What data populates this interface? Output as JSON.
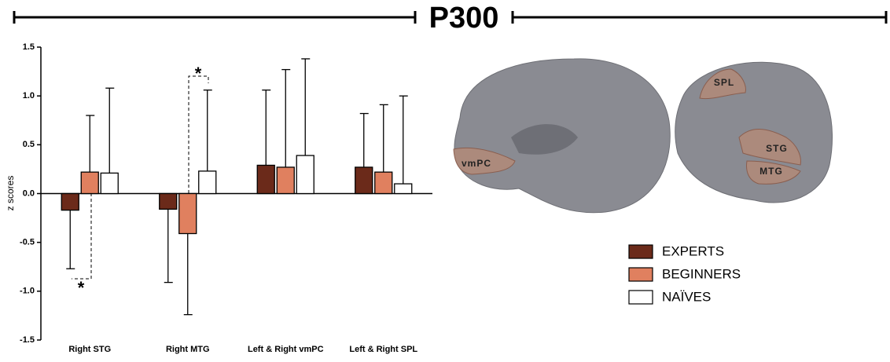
{
  "chart_data": {
    "type": "bar",
    "title": "P300",
    "y_label": "z scores",
    "categories": [
      "Right STG",
      "Right MTG",
      "Left & Right vmPC",
      "Left & Right SPL"
    ],
    "series": [
      {
        "name": "EXPERTS",
        "color": "#6b2a1a",
        "values": [
          -0.17,
          -0.16,
          0.29,
          0.27
        ],
        "errors": [
          0.6,
          0.75,
          0.77,
          0.55
        ]
      },
      {
        "name": "BEGINNERS",
        "color": "#e0805f",
        "values": [
          0.22,
          -0.41,
          0.27,
          0.22
        ],
        "errors": [
          0.58,
          0.83,
          1.0,
          0.69
        ]
      },
      {
        "name": "NAÏVES",
        "color": "#ffffff",
        "values": [
          0.21,
          0.23,
          0.39,
          0.1
        ],
        "errors": [
          0.87,
          0.83,
          0.99,
          0.9
        ]
      }
    ],
    "ylim": [
      -1.5,
      1.5
    ],
    "yticks": [
      1.5,
      {
        "value": 1.0,
        "label": "1.0"
      },
      0.5,
      {
        "value": 0,
        "label": "0.0"
      },
      -0.5,
      {
        "value": -1.0,
        "label": "-1.0"
      },
      -1.5
    ],
    "annotations": [
      "*",
      "*"
    ],
    "brain_labels": [
      "SPL",
      "STG",
      "MTG",
      "vmPC"
    ]
  }
}
